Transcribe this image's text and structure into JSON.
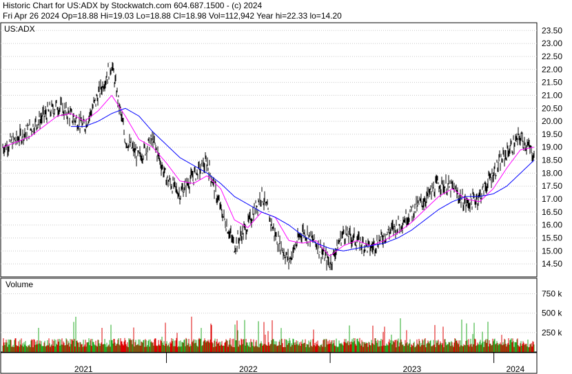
{
  "header": {
    "line1": "Historic Chart for US:ADX by Stockwatch.com 604.687.1500 - (c) 2024",
    "line2": "Fri Apr 26 2024   Op=18.88   Hi=19.03   Lo=18.88   Cl=18.98   Vol=112,942   Year hi=22.33   lo=14.20"
  },
  "colors": {
    "price": "#000000",
    "ma_short": "#ff00ff",
    "ma_long": "#0000ff",
    "vol_up": "#22aa22",
    "vol_down": "#dd0000",
    "grid": "#c8c8c8"
  },
  "chart_data": [
    {
      "type": "line",
      "symbol_label": "US:ADX",
      "y_ticks": [
        "23.50",
        "23.00",
        "22.50",
        "22.00",
        "21.50",
        "21.00",
        "20.50",
        "20.00",
        "19.50",
        "19.00",
        "18.50",
        "18.00",
        "17.50",
        "17.00",
        "16.50",
        "16.00",
        "15.50",
        "15.00",
        "14.50"
      ],
      "ylim": [
        14.0,
        23.8
      ],
      "x_labels": [
        "2021",
        "2022",
        "2023",
        "2024"
      ],
      "grid": true,
      "series": [
        {
          "role": "price",
          "x": [
            "2021-01",
            "2021-02",
            "2021-03",
            "2021-04",
            "2021-05",
            "2021-06",
            "2021-07",
            "2021-08",
            "2021-09",
            "2021-10",
            "2021-11",
            "2021-12",
            "2022-01",
            "2022-02",
            "2022-03",
            "2022-04",
            "2022-05",
            "2022-06",
            "2022-07",
            "2022-08",
            "2022-09",
            "2022-10",
            "2022-11",
            "2022-12",
            "2023-01",
            "2023-02",
            "2023-03",
            "2023-04",
            "2023-05",
            "2023-06",
            "2023-07",
            "2023-08",
            "2023-09",
            "2023-10",
            "2023-11",
            "2023-12",
            "2024-01",
            "2024-02",
            "2024-03",
            "2024-04"
          ],
          "values": [
            19.0,
            19.3,
            19.7,
            20.2,
            20.6,
            20.2,
            19.8,
            21.0,
            22.2,
            19.3,
            18.6,
            19.3,
            17.8,
            17.2,
            17.9,
            18.4,
            16.6,
            15.2,
            16.0,
            17.2,
            15.6,
            14.6,
            15.8,
            15.3,
            14.5,
            15.7,
            15.4,
            15.1,
            15.6,
            16.0,
            16.5,
            17.0,
            17.6,
            17.4,
            16.8,
            17.1,
            18.0,
            18.8,
            19.4,
            18.7
          ]
        },
        {
          "role": "ma_short",
          "values": [
            19.0,
            19.2,
            19.4,
            19.8,
            20.2,
            20.3,
            20.0,
            20.4,
            21.0,
            20.2,
            19.3,
            19.0,
            18.4,
            17.7,
            17.6,
            17.9,
            17.4,
            16.2,
            15.9,
            16.5,
            16.3,
            15.4,
            15.3,
            15.4,
            14.8,
            15.2,
            15.4,
            15.2,
            15.4,
            15.7,
            16.1,
            16.6,
            17.1,
            17.4,
            17.0,
            16.9,
            17.4,
            18.2,
            18.9,
            19.0
          ]
        },
        {
          "role": "ma_long",
          "values": [
            null,
            null,
            null,
            null,
            null,
            null,
            19.8,
            20.0,
            20.3,
            20.5,
            20.2,
            19.6,
            19.1,
            18.6,
            18.3,
            18.0,
            17.6,
            17.1,
            16.8,
            16.5,
            16.3,
            16.0,
            15.6,
            15.3,
            15.1,
            15.0,
            15.1,
            15.2,
            15.3,
            15.5,
            15.8,
            16.2,
            16.6,
            16.9,
            17.1,
            17.1,
            17.2,
            17.5,
            18.0,
            18.5
          ]
        }
      ]
    },
    {
      "type": "bar",
      "label": "Volume",
      "y_ticks": [
        "750 k",
        "500 k",
        "250 k"
      ],
      "ylim": [
        0,
        950
      ],
      "note": "daily volume bars, green = up day, red = down day"
    }
  ]
}
